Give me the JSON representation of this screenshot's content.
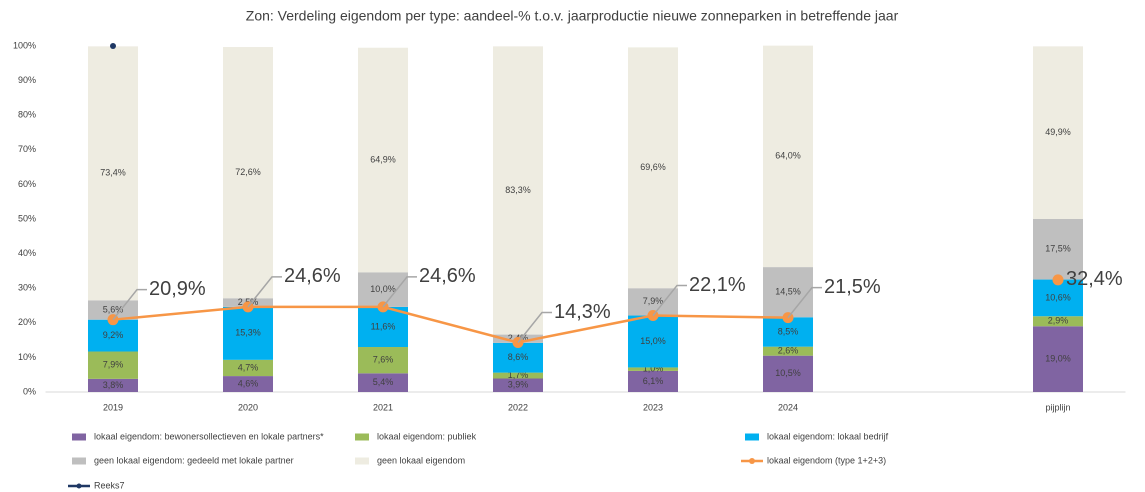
{
  "chart_data": {
    "type": "stacked_bar_line",
    "title": "Zon: Verdeling eigendom per type: aandeel-% t.o.v.  jaarproductie nieuwe zonneparken in betreffende jaar",
    "categories": [
      "2019",
      "2020",
      "2021",
      "2022",
      "2023",
      "2024",
      null,
      "pijplijn"
    ],
    "ylim": [
      0,
      100
    ],
    "yticks": [
      {
        "value": 0,
        "label": "0%"
      },
      {
        "value": 10,
        "label": "10%"
      },
      {
        "value": 20,
        "label": "20%"
      },
      {
        "value": 30,
        "label": "30%"
      },
      {
        "value": 40,
        "label": "40%"
      },
      {
        "value": 50,
        "label": "50%"
      },
      {
        "value": 60,
        "label": "60%"
      },
      {
        "value": 70,
        "label": "70%"
      },
      {
        "value": 80,
        "label": "80%"
      },
      {
        "value": 90,
        "label": "90%"
      },
      {
        "value": 100,
        "label": "100%"
      }
    ],
    "grid": false,
    "legend": "bottom",
    "series": [
      {
        "name": "lokaal eigendom: bewonersollectieven en lokale partners*",
        "color": "#8064a2",
        "kind": "bar",
        "values": [
          3.8,
          4.6,
          5.4,
          3.9,
          6.1,
          10.5,
          null,
          19.0
        ],
        "value_labels": [
          "3,8%",
          "4,6%",
          "5,4%",
          "3,9%",
          "6,1%",
          "10,5%",
          null,
          "19,0%"
        ]
      },
      {
        "name": "lokaal eigendom: publiek",
        "color": "#9bbb59",
        "kind": "bar",
        "values": [
          7.9,
          4.7,
          7.6,
          1.7,
          1.0,
          2.6,
          null,
          2.9
        ],
        "value_labels": [
          "7,9%",
          "4,7%",
          "7,6%",
          "1,7%",
          "1,0%",
          "2,6%",
          null,
          "2,9%"
        ]
      },
      {
        "name": "lokaal eigendom: lokaal bedrijf",
        "color": "#00b0f0",
        "kind": "bar",
        "values": [
          9.2,
          15.3,
          11.6,
          8.6,
          15.0,
          8.5,
          null,
          10.6
        ],
        "value_labels": [
          "9,2%",
          "15,3%",
          "11,6%",
          "8,6%",
          "15,0%",
          "8,5%",
          null,
          "10,6%"
        ]
      },
      {
        "name": "geen lokaal eigendom: gedeeld met lokale partner",
        "color": "#bfbfbf",
        "kind": "bar",
        "values": [
          5.6,
          2.5,
          10.0,
          2.4,
          7.9,
          14.5,
          null,
          17.5
        ],
        "value_labels": [
          "5,6%",
          "2,5%",
          "10,0%",
          "2,4%",
          "7,9%",
          "14,5%",
          null,
          "17,5%"
        ]
      },
      {
        "name": "geen lokaal eigendom",
        "color": "#eeece1",
        "kind": "bar",
        "values": [
          73.4,
          72.6,
          64.9,
          83.3,
          69.6,
          64.0,
          null,
          49.9
        ],
        "value_labels": [
          "73,4%",
          "72,6%",
          "64,9%",
          "83,3%",
          "69,6%",
          "64,0%",
          null,
          "49,9%"
        ]
      },
      {
        "name": "lokaal eigendom (type 1+2+3)",
        "color": "#f79646",
        "kind": "line",
        "values": [
          20.9,
          24.6,
          24.6,
          14.3,
          22.1,
          21.5,
          null,
          32.4
        ],
        "value_labels": [
          "20,9%",
          "24,6%",
          "24,6%",
          "14,3%",
          "22,1%",
          "21,5%",
          null,
          "32,4%"
        ]
      },
      {
        "name": "Reeks7",
        "color": "#1f3864",
        "kind": "line",
        "values": [
          100,
          null,
          null,
          null,
          null,
          null,
          null,
          null
        ]
      }
    ]
  }
}
